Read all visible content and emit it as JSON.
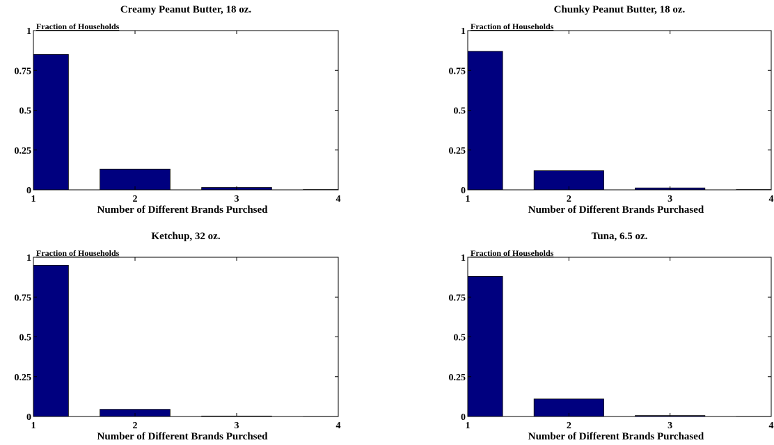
{
  "colors": {
    "bar": "#00007f",
    "axis": "#000000",
    "background": "#ffffff"
  },
  "chart_data": [
    {
      "type": "bar",
      "title": "Creamy Peanut Butter, 18 oz.",
      "xlabel": "Number of Different Brands Purchsed",
      "ylabel": "Fraction of Households",
      "x": [
        1,
        2,
        3,
        4
      ],
      "values": [
        0.85,
        0.13,
        0.015,
        0.002
      ],
      "xlim": [
        1,
        4
      ],
      "ylim": [
        0,
        1
      ],
      "xticks": [
        "1",
        "2",
        "3",
        "4"
      ],
      "yticks": [
        "0",
        "0.25",
        "0.5",
        "0.75",
        "1"
      ],
      "grid": false
    },
    {
      "type": "bar",
      "title": "Chunky Peanut Butter, 18 oz.",
      "xlabel": "Number of Different Brands Purchased",
      "ylabel": "Fraction of Households",
      "x": [
        1,
        2,
        3,
        4
      ],
      "values": [
        0.87,
        0.12,
        0.012,
        0.002
      ],
      "xlim": [
        1,
        4
      ],
      "ylim": [
        0,
        1
      ],
      "xticks": [
        "1",
        "2",
        "3",
        "4"
      ],
      "yticks": [
        "0",
        "0.25",
        "0.5",
        "0.75",
        "1"
      ],
      "grid": false
    },
    {
      "type": "bar",
      "title": "Ketchup, 32 oz.",
      "xlabel": "Number of Different Brands Purchsed",
      "ylabel": "Fraction of Households",
      "x": [
        1,
        2,
        3,
        4
      ],
      "values": [
        0.95,
        0.045,
        0.003,
        0.001
      ],
      "xlim": [
        1,
        4
      ],
      "ylim": [
        0,
        1
      ],
      "xticks": [
        "1",
        "2",
        "3",
        "4"
      ],
      "yticks": [
        "0",
        "0.25",
        "0.5",
        "0.75",
        "1"
      ],
      "grid": false
    },
    {
      "type": "bar",
      "title": "Tuna, 6.5 oz.",
      "xlabel": "Number of Different Brands Purchased",
      "ylabel": "Fraction of Households",
      "x": [
        1,
        2,
        3,
        4
      ],
      "values": [
        0.88,
        0.11,
        0.006,
        0.001
      ],
      "xlim": [
        1,
        4
      ],
      "ylim": [
        0,
        1
      ],
      "xticks": [
        "1",
        "2",
        "3",
        "4"
      ],
      "yticks": [
        "0",
        "0.25",
        "0.5",
        "0.75",
        "1"
      ],
      "grid": false
    }
  ]
}
